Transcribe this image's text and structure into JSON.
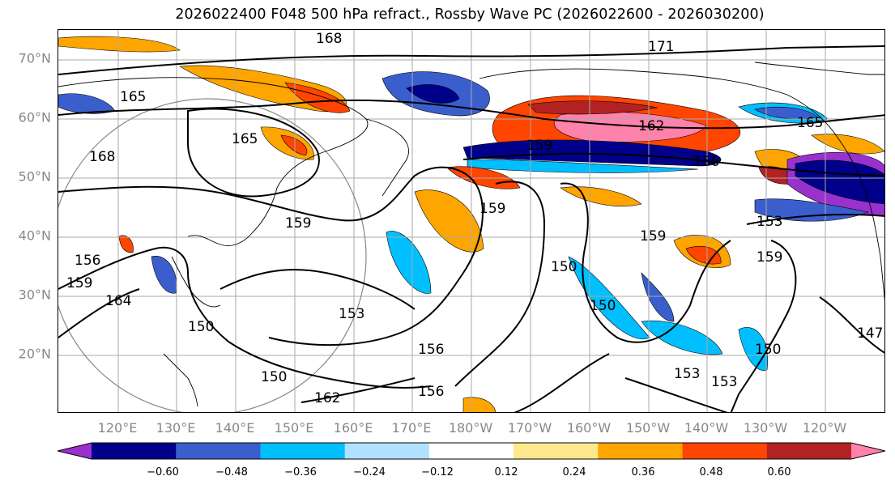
{
  "title": "2026022400 F048 500 hPa refract., Rossby Wave PC (2026022600 - 2026030200)",
  "map": {
    "projection": "cylindrical",
    "lat_ticks": [
      "70°N",
      "60°N",
      "50°N",
      "40°N",
      "30°N",
      "20°N"
    ],
    "lon_ticks": [
      "120°E",
      "130°E",
      "140°E",
      "150°E",
      "160°E",
      "170°E",
      "180°W",
      "170°W",
      "160°W",
      "150°W",
      "140°W",
      "130°W",
      "120°W"
    ],
    "contour_labels": [
      "168",
      "171",
      "165",
      "165",
      "168",
      "165",
      "159",
      "162",
      "156",
      "159",
      "159",
      "159",
      "153",
      "156",
      "159",
      "159",
      "164",
      "150",
      "153",
      "150",
      "150",
      "156",
      "150",
      "162",
      "156",
      "153",
      "153",
      "150",
      "147"
    ],
    "colors": {
      "grid": "#aaaaaa",
      "contour": "#000000",
      "coast": "#000000"
    }
  },
  "colorbar": {
    "tick_labels": [
      "−0.60",
      "−0.48",
      "−0.36",
      "−0.24",
      "−0.12",
      "0.12",
      "0.24",
      "0.36",
      "0.48",
      "0.60"
    ],
    "colors": [
      "#9932cc",
      "#00008b",
      "#3a5fcd",
      "#00bfff",
      "#b0e2ff",
      "#ffffff",
      "#ffe88c",
      "#ffa500",
      "#ff4500",
      "#b22222",
      "#ff82ab"
    ]
  }
}
